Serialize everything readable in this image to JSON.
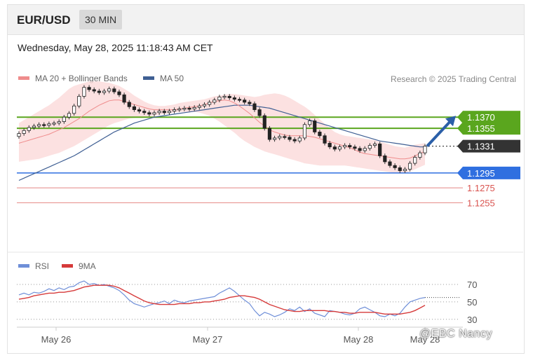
{
  "header": {
    "symbol": "EUR/USD",
    "timeframe": "30 MIN"
  },
  "timestamp": "Wednesday, May 28, 2025 11:18:43 AM CET",
  "credit": "Research © 2025 Trading Central",
  "watermark": "@EBC Nancy",
  "colors": {
    "resistance": "#5aa61e",
    "support": "#2f6fe0",
    "lower": "#d9534f",
    "current": "#333333",
    "bollinger": "#fbd7d7",
    "ma20": "#ef8c8c",
    "ma50": "#3f5f93",
    "rsi": "#6f8fd8",
    "rsi_ma": "#d63a3a",
    "arrow": "#2b5fa8"
  },
  "chart_data": [
    {
      "type": "candlestick",
      "x_ticks": [
        "May 26",
        "May 27",
        "May 28",
        "May 28"
      ],
      "legend": [
        {
          "name": "MA 20 + Bollinger Bands",
          "color": "#ef8c8c"
        },
        {
          "name": "MA 50",
          "color": "#3f5f93"
        }
      ],
      "ylim": [
        1.1245,
        1.1405
      ],
      "levels": [
        {
          "label": "1.1370",
          "value": 1.137,
          "kind": "resistance"
        },
        {
          "label": "1.1355",
          "value": 1.1355,
          "kind": "resistance"
        },
        {
          "label": "1.1331",
          "value": 1.1331,
          "kind": "current"
        },
        {
          "label": "1.1295",
          "value": 1.1295,
          "kind": "support"
        },
        {
          "label": "1.1275",
          "value": 1.1275,
          "kind": "lower"
        },
        {
          "label": "1.1255",
          "value": 1.1255,
          "kind": "lower"
        }
      ],
      "close": [
        1.1348,
        1.1352,
        1.1356,
        1.1358,
        1.136,
        1.1359,
        1.1361,
        1.1362,
        1.1364,
        1.137,
        1.1375,
        1.1385,
        1.1398,
        1.141,
        1.1407,
        1.1405,
        1.1403,
        1.1405,
        1.1408,
        1.1404,
        1.14,
        1.139,
        1.1384,
        1.138,
        1.1378,
        1.1376,
        1.1374,
        1.1376,
        1.1378,
        1.1376,
        1.1378,
        1.138,
        1.1381,
        1.1382,
        1.1381,
        1.1383,
        1.1385,
        1.1387,
        1.139,
        1.1393,
        1.1397,
        1.1398,
        1.1396,
        1.1394,
        1.1393,
        1.139,
        1.1388,
        1.138,
        1.1372,
        1.1355,
        1.134,
        1.1342,
        1.1344,
        1.1343,
        1.134,
        1.1338,
        1.1342,
        1.136,
        1.1365,
        1.135,
        1.1345,
        1.1335,
        1.133,
        1.1327,
        1.133,
        1.1332,
        1.133,
        1.1328,
        1.1325,
        1.1328,
        1.1332,
        1.1334,
        1.1318,
        1.131,
        1.1305,
        1.1302,
        1.1298,
        1.13,
        1.1308,
        1.1316,
        1.1322,
        1.1331
      ],
      "ma20": [
        1.1335,
        1.1337,
        1.1339,
        1.1341,
        1.1343,
        1.1345,
        1.1347,
        1.135,
        1.1353,
        1.1356,
        1.136,
        1.1364,
        1.1368,
        1.1373,
        1.1378,
        1.1382,
        1.1386,
        1.1389,
        1.1392,
        1.1393,
        1.1393,
        1.1391,
        1.1389,
        1.1387,
        1.1385,
        1.1383,
        1.1381,
        1.138,
        1.138,
        1.138,
        1.138,
        1.138,
        1.1381,
        1.1382,
        1.1383,
        1.1384,
        1.1385,
        1.1387,
        1.1389,
        1.1391,
        1.1392,
        1.1393,
        1.1392,
        1.1389,
        1.1385,
        1.138,
        1.1375,
        1.1369,
        1.1363,
        1.1358,
        1.1353,
        1.135,
        1.1348,
        1.1346,
        1.1345,
        1.1345,
        1.1345,
        1.1345,
        1.1344,
        1.1343,
        1.1341,
        1.1339,
        1.1337,
        1.1335,
        1.1333,
        1.1331,
        1.1329,
        1.1326,
        1.1323,
        1.1321,
        1.132,
        1.1319,
        1.1318,
        1.1317,
        1.1316,
        1.1315,
        1.1314,
        1.1314,
        1.1315,
        1.1318,
        1.1321,
        1.1324
      ],
      "ma50": [
        1.1285,
        1.1288,
        1.1291,
        1.1294,
        1.1297,
        1.13,
        1.1303,
        1.1306,
        1.1309,
        1.1312,
        1.1315,
        1.1318,
        1.1322,
        1.1326,
        1.133,
        1.1334,
        1.1338,
        1.1342,
        1.1346,
        1.135,
        1.1353,
        1.1356,
        1.1359,
        1.1362,
        1.1364,
        1.1366,
        1.1368,
        1.137,
        1.1371,
        1.1372,
        1.1373,
        1.1374,
        1.1375,
        1.1376,
        1.1377,
        1.1378,
        1.1379,
        1.138,
        1.1381,
        1.1382,
        1.1383,
        1.1384,
        1.1385,
        1.1386,
        1.1386,
        1.1386,
        1.1386,
        1.1385,
        1.1384,
        1.1383,
        1.1382,
        1.138,
        1.1378,
        1.1376,
        1.1374,
        1.1372,
        1.137,
        1.1368,
        1.1366,
        1.1364,
        1.1362,
        1.136,
        1.1358,
        1.1356,
        1.1354,
        1.1352,
        1.135,
        1.1348,
        1.1346,
        1.1344,
        1.1342,
        1.134,
        1.1338,
        1.1337,
        1.1336,
        1.1335,
        1.1334,
        1.1333,
        1.1332,
        1.1331,
        1.133,
        1.133
      ],
      "boll_upper": [
        1.1362,
        1.1366,
        1.137,
        1.1374,
        1.1378,
        1.1382,
        1.1386,
        1.1391,
        1.1396,
        1.1402,
        1.1408,
        1.1412,
        1.1414,
        1.1416,
        1.1418,
        1.1418,
        1.1418,
        1.1417,
        1.1416,
        1.1414,
        1.1412,
        1.1408,
        1.1404,
        1.1399,
        1.1395,
        1.1391,
        1.1388,
        1.1386,
        1.1385,
        1.1385,
        1.1386,
        1.1387,
        1.1389,
        1.139,
        1.1391,
        1.1392,
        1.1393,
        1.1394,
        1.1396,
        1.1398,
        1.1399,
        1.14,
        1.1401,
        1.1401,
        1.14,
        1.1399,
        1.1398,
        1.1397,
        1.1398,
        1.14,
        1.1401,
        1.1402,
        1.1401,
        1.1399,
        1.1396,
        1.1392,
        1.1388,
        1.1384,
        1.1379,
        1.1373,
        1.1367,
        1.1361,
        1.1355,
        1.135,
        1.1347,
        1.1345,
        1.1344,
        1.1343,
        1.1342,
        1.1341,
        1.134,
        1.1339,
        1.1337,
        1.1335,
        1.1333,
        1.1331,
        1.133,
        1.1329,
        1.1331,
        1.1333,
        1.1334,
        1.1335
      ],
      "boll_lower": [
        1.131,
        1.1311,
        1.1312,
        1.1313,
        1.1314,
        1.1316,
        1.1318,
        1.132,
        1.1322,
        1.1325,
        1.1328,
        1.1331,
        1.1335,
        1.1339,
        1.1343,
        1.1347,
        1.1351,
        1.1355,
        1.1359,
        1.1362,
        1.1364,
        1.1366,
        1.1368,
        1.1369,
        1.137,
        1.137,
        1.1371,
        1.1372,
        1.1373,
        1.1374,
        1.1375,
        1.1376,
        1.1377,
        1.1377,
        1.1377,
        1.1377,
        1.1376,
        1.1374,
        1.1372,
        1.1368,
        1.1364,
        1.1359,
        1.1354,
        1.1349,
        1.1343,
        1.1338,
        1.1334,
        1.133,
        1.1327,
        1.1324,
        1.1322,
        1.132,
        1.1318,
        1.1316,
        1.1314,
        1.1312,
        1.131,
        1.1308,
        1.1307,
        1.1306,
        1.1305,
        1.1305,
        1.1305,
        1.1305,
        1.1305,
        1.1305,
        1.1304,
        1.1303,
        1.1302,
        1.1301,
        1.13,
        1.1299,
        1.1298,
        1.1297,
        1.1296,
        1.1295,
        1.1294,
        1.1295,
        1.1297,
        1.13,
        1.1303,
        1.1306
      ]
    },
    {
      "type": "line",
      "legend": [
        {
          "name": "RSI",
          "color": "#6f8fd8"
        },
        {
          "name": "9MA",
          "color": "#d63a3a"
        }
      ],
      "y_ticks": [
        70,
        50,
        30
      ],
      "ylim": [
        25,
        78
      ],
      "rsi": [
        58,
        60,
        58,
        61,
        60,
        62,
        65,
        63,
        66,
        64,
        67,
        68,
        72,
        74,
        70,
        71,
        69,
        70,
        68,
        66,
        63,
        58,
        52,
        48,
        46,
        44,
        46,
        48,
        49,
        51,
        48,
        52,
        50,
        49,
        51,
        52,
        53,
        54,
        55,
        56,
        60,
        63,
        66,
        62,
        57,
        52,
        48,
        40,
        34,
        38,
        36,
        33,
        35,
        38,
        42,
        40,
        44,
        39,
        42,
        37,
        35,
        33,
        40,
        39,
        38,
        36,
        35,
        37,
        42,
        44,
        41,
        38,
        34,
        33,
        36,
        34,
        37,
        44,
        50,
        52,
        54,
        55
      ],
      "ma9": [
        53,
        54,
        55,
        57,
        58,
        59,
        60,
        60,
        61,
        61,
        62,
        63,
        65,
        67,
        68,
        69,
        69,
        69,
        69,
        68,
        66,
        63,
        60,
        57,
        54,
        51,
        49,
        48,
        47,
        47,
        47,
        47,
        48,
        48,
        48,
        49,
        49,
        50,
        50,
        51,
        52,
        53,
        55,
        56,
        57,
        57,
        56,
        55,
        53,
        50,
        47,
        45,
        43,
        41,
        40,
        39,
        39,
        40,
        40,
        40,
        40,
        40,
        39,
        39,
        38,
        38,
        37,
        37,
        38,
        38,
        38,
        38,
        37,
        36,
        36,
        36,
        36,
        37,
        38,
        40,
        43,
        46
      ]
    }
  ]
}
